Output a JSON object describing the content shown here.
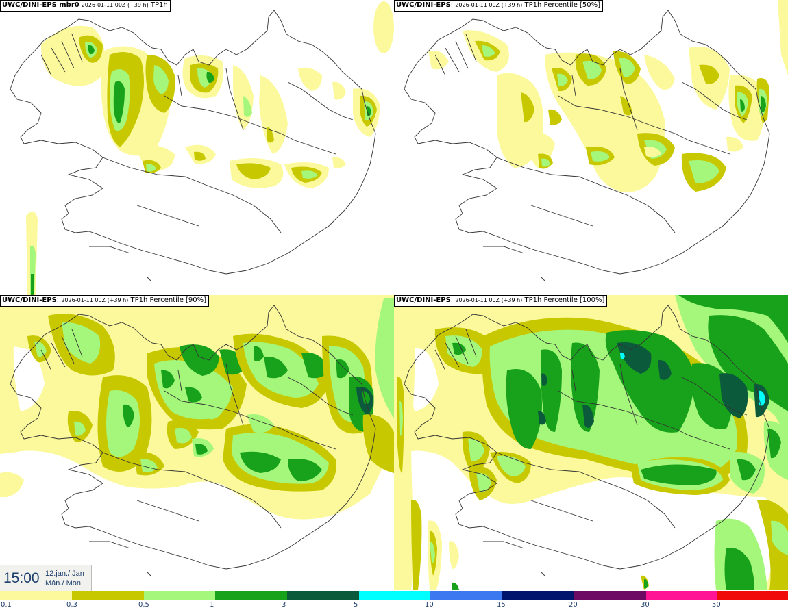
{
  "panels": [
    {
      "model": "UWC/DINI-EPS",
      "suffix": " mbr0",
      "run": "2026-01-11 00Z (+39 h)",
      "field": "TP1h"
    },
    {
      "model": "UWC/DINI-EPS",
      "suffix": "",
      "run": "2026-01-11 00Z (+39 h)",
      "field": "TP1h Percentile [50%]"
    },
    {
      "model": "UWC/DINI-EPS",
      "suffix": "",
      "run": "2026-01-11 00Z (+39 h)",
      "field": "TP1h Percentile [90%]"
    },
    {
      "model": "UWC/DINI-EPS",
      "suffix": "",
      "run": "2026-01-11 00Z (+39 h)",
      "field": "TP1h Percentile [100%]"
    }
  ],
  "valid_time": {
    "time": "15:00",
    "date_line1": "12.jan./ Jan",
    "date_line2": "Mán./ Mon"
  },
  "legend": {
    "ticks": [
      "0.1",
      "0.3",
      "0.5",
      "1",
      "3",
      "5",
      "10",
      "15",
      "20",
      "30",
      "50"
    ],
    "colors": [
      "#fbf99c",
      "#c8c800",
      "#a4f77a",
      "#18a21c",
      "#0c5a3c",
      "#00ffff",
      "#3c78f0",
      "#00146e",
      "#6e0a64",
      "#ff1496",
      "#f00a0a"
    ]
  },
  "map_colors": {
    "background": "#ffffff",
    "coast": "#333333",
    "levels": [
      "#fbf99c",
      "#c8c800",
      "#a4f77a",
      "#18a21c",
      "#0c5a3c",
      "#00ffff"
    ]
  }
}
